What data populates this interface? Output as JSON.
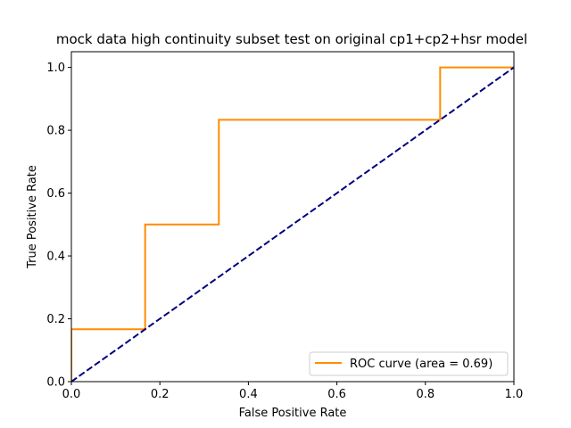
{
  "chart_data": {
    "type": "line",
    "title": "mock data high continuity subset test on original cp1+cp2+hsr model",
    "xlabel": "False Positive Rate",
    "ylabel": "True Positive Rate",
    "xlim": [
      0.0,
      1.0
    ],
    "ylim": [
      0.0,
      1.05
    ],
    "xticks": [
      0.0,
      0.2,
      0.4,
      0.6,
      0.8,
      1.0
    ],
    "xtick_labels": [
      "0.0",
      "0.2",
      "0.4",
      "0.6",
      "0.8",
      "1.0"
    ],
    "yticks": [
      0.0,
      0.2,
      0.4,
      0.6,
      0.8,
      1.0
    ],
    "ytick_labels": [
      "0.0",
      "0.2",
      "0.4",
      "0.6",
      "0.8",
      "1.0"
    ],
    "grid": false,
    "legend_position": "lower right",
    "series": [
      {
        "name": "ROC curve (area = 0.69)",
        "color": "#ff8c00",
        "style": "solid",
        "x": [
          0.0,
          0.0,
          0.1667,
          0.1667,
          0.3333,
          0.3333,
          0.8333,
          0.8333,
          1.0
        ],
        "y": [
          0.0,
          0.1667,
          0.1667,
          0.5,
          0.5,
          0.8333,
          0.8333,
          1.0,
          1.0
        ]
      },
      {
        "color": "#000080",
        "style": "dashed",
        "x": [
          0.0,
          1.0
        ],
        "y": [
          0.0,
          1.0
        ]
      }
    ]
  }
}
